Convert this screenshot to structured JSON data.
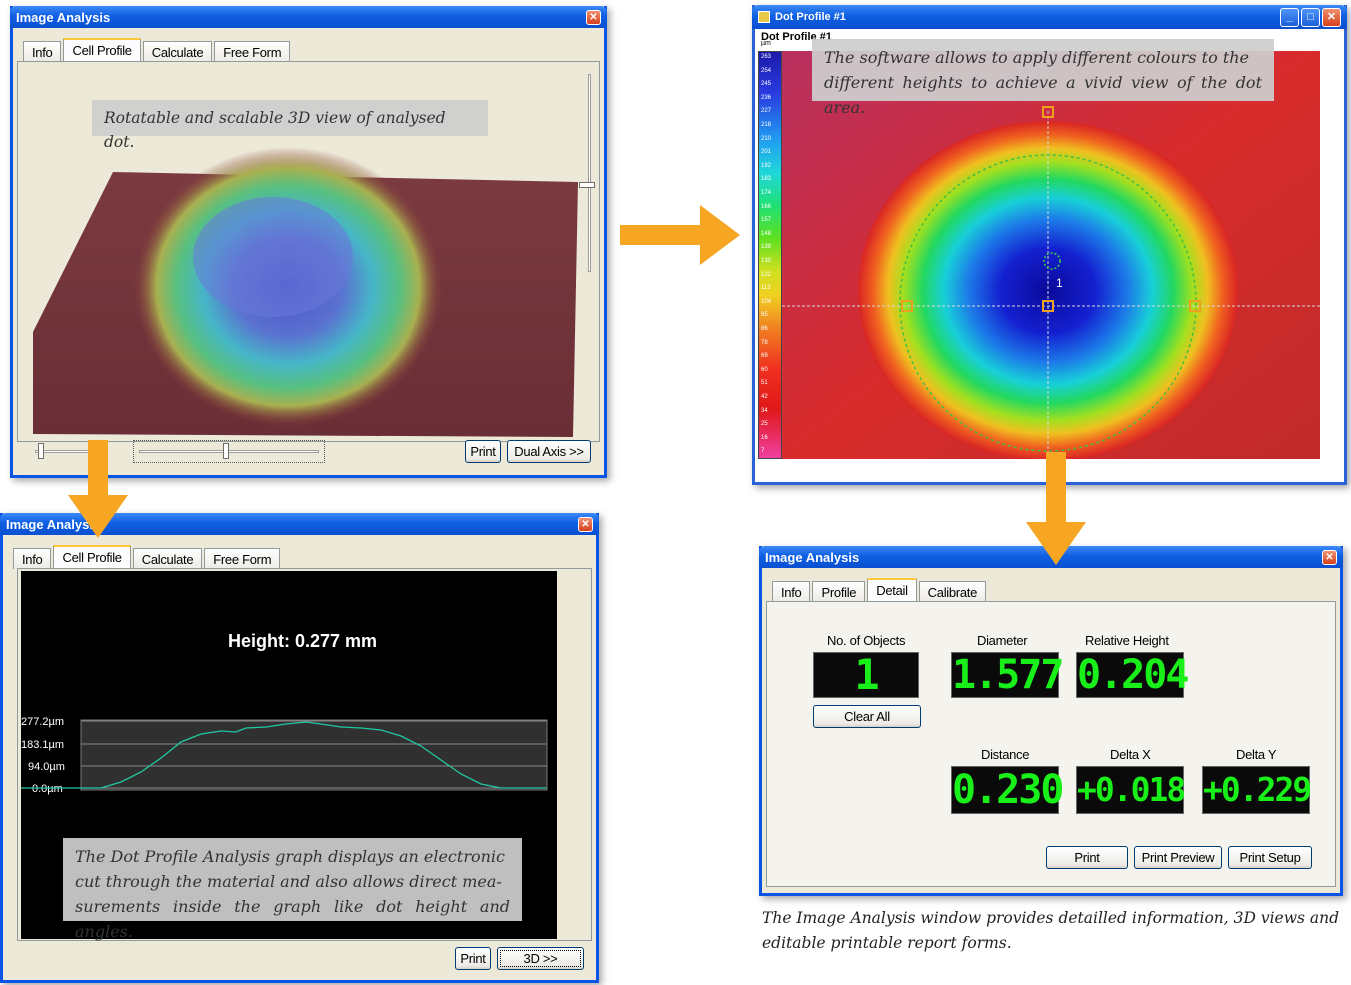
{
  "win_3d": {
    "title": "Image Analysis",
    "tabs": [
      "Info",
      "Cell Profile",
      "Calculate",
      "Free Form"
    ],
    "caption": "Rotatable and scalable 3D view of analysed dot.",
    "print_label": "Print",
    "dual_axis_label": "Dual Axis >>"
  },
  "win_dot": {
    "title": "Dot Profile #1",
    "subtitle": "Dot Profile #1",
    "scale_unit": "µm",
    "scale_ticks": [
      "263",
      "254",
      "245",
      "236",
      "227",
      "218",
      "210",
      "201",
      "192",
      "183",
      "174",
      "166",
      "157",
      "148",
      "139",
      "130",
      "122",
      "113",
      "104",
      "95",
      "86",
      "78",
      "69",
      "60",
      "51",
      "42",
      "34",
      "25",
      "16",
      "7"
    ],
    "caption_line1": "The software allows to apply different colours to the",
    "caption_line2": "different heights to achieve a vivid view of the dot area.",
    "marker_label": "1"
  },
  "win_profile": {
    "title": "Image Analysis",
    "tabs": [
      "Info",
      "Cell Profile",
      "Calculate",
      "Free Form"
    ],
    "height_text": "Height: 0.277 mm",
    "y_labels": [
      "277.2µm",
      "183.1µm",
      "94.0µm",
      "0.0µm"
    ],
    "caption_line1": "The Dot Profile Analysis graph displays an electronic",
    "caption_line2": "cut through the material and also allows direct mea-",
    "caption_line3": "surements inside the graph like dot height and angles.",
    "print_label": "Print",
    "view_3d_label": "3D >>"
  },
  "win_detail": {
    "title": "Image Analysis",
    "tabs": [
      "Info",
      "Profile",
      "Detail",
      "Calibrate"
    ],
    "no_objects_label": "No. of Objects",
    "no_objects_value": "1",
    "clear_all_label": "Clear All",
    "diameter_label": "Diameter",
    "diameter_value": "1.577",
    "rel_height_label": "Relative Height",
    "rel_height_value": "0.204",
    "distance_label": "Distance",
    "distance_value": "0.230",
    "delta_x_label": "Delta X",
    "delta_x_value": "+0.018",
    "delta_y_label": "Delta Y",
    "delta_y_value": "+0.229",
    "print_label": "Print",
    "print_preview_label": "Print Preview",
    "print_setup_label": "Print Setup"
  },
  "footer_caption_line1": "The Image Analysis window provides detailled information, 3D views and",
  "footer_caption_line2": "editable printable report forms.",
  "colors": {
    "accent_arrow": "#f6a623",
    "titlebar": "#0a54e6",
    "lcd_green": "#19f019"
  }
}
